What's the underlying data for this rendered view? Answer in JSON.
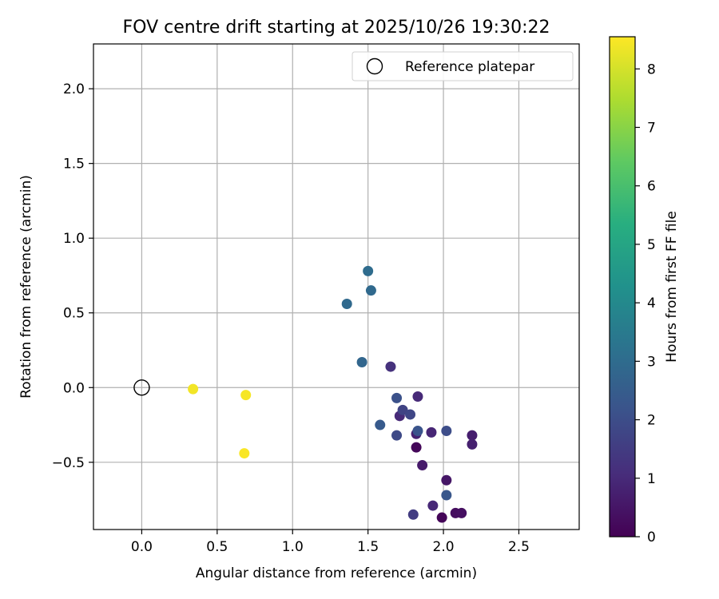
{
  "chart_data": {
    "type": "scatter",
    "title": "FOV centre drift starting at 2025/10/26 19:30:22",
    "xlabel": "Angular distance from reference (arcmin)",
    "ylabel": "Rotation from reference (arcmin)",
    "xlim": [
      -0.32,
      2.9
    ],
    "ylim": [
      -0.95,
      2.3
    ],
    "xticks": [
      0.0,
      0.5,
      1.0,
      1.5,
      2.0,
      2.5
    ],
    "xtick_labels": [
      "0.0",
      "0.5",
      "1.0",
      "1.5",
      "2.0",
      "2.5"
    ],
    "yticks": [
      -0.5,
      0.0,
      0.5,
      1.0,
      1.5,
      2.0
    ],
    "ytick_labels": [
      "−0.5",
      "0.0",
      "0.5",
      "1.0",
      "1.5",
      "2.0"
    ],
    "grid": true,
    "legend": {
      "position": "top-right",
      "entries": [
        "Reference platepar"
      ]
    },
    "reference_point": {
      "x": 0.0,
      "y": 0.0,
      "label": "Reference platepar"
    },
    "colorbar": {
      "label": "Hours from first FF file",
      "range": [
        0,
        8.55
      ],
      "ticks": [
        0,
        1,
        2,
        3,
        4,
        5,
        6,
        7,
        8
      ],
      "tick_labels": [
        "0",
        "1",
        "2",
        "3",
        "4",
        "5",
        "6",
        "7",
        "8"
      ],
      "colormap": "viridis"
    },
    "points": [
      {
        "x": 1.99,
        "y": -0.87,
        "hours": 0.1
      },
      {
        "x": 1.82,
        "y": -0.4,
        "hours": 0.15
      },
      {
        "x": 2.08,
        "y": -0.84,
        "hours": 0.3
      },
      {
        "x": 2.12,
        "y": -0.84,
        "hours": 0.35
      },
      {
        "x": 2.02,
        "y": -0.62,
        "hours": 0.5
      },
      {
        "x": 1.86,
        "y": -0.52,
        "hours": 0.6
      },
      {
        "x": 2.19,
        "y": -0.32,
        "hours": 0.7
      },
      {
        "x": 2.19,
        "y": -0.38,
        "hours": 0.75
      },
      {
        "x": 1.82,
        "y": -0.31,
        "hours": 0.8
      },
      {
        "x": 1.92,
        "y": -0.3,
        "hours": 0.9
      },
      {
        "x": 1.93,
        "y": -0.79,
        "hours": 0.95
      },
      {
        "x": 1.83,
        "y": -0.06,
        "hours": 1.0
      },
      {
        "x": 1.71,
        "y": -0.19,
        "hours": 1.0
      },
      {
        "x": 1.65,
        "y": 0.14,
        "hours": 1.2
      },
      {
        "x": 1.8,
        "y": -0.85,
        "hours": 1.5
      },
      {
        "x": 1.73,
        "y": -0.15,
        "hours": 1.7
      },
      {
        "x": 1.78,
        "y": -0.18,
        "hours": 1.8
      },
      {
        "x": 1.69,
        "y": -0.32,
        "hours": 1.9
      },
      {
        "x": 2.02,
        "y": -0.29,
        "hours": 2.0
      },
      {
        "x": 1.69,
        "y": -0.07,
        "hours": 2.1
      },
      {
        "x": 1.83,
        "y": -0.29,
        "hours": 2.2
      },
      {
        "x": 2.02,
        "y": -0.72,
        "hours": 2.3
      },
      {
        "x": 1.58,
        "y": -0.25,
        "hours": 2.4
      },
      {
        "x": 1.46,
        "y": 0.17,
        "hours": 2.8
      },
      {
        "x": 1.36,
        "y": 0.56,
        "hours": 2.9
      },
      {
        "x": 1.52,
        "y": 0.65,
        "hours": 2.9
      },
      {
        "x": 1.5,
        "y": 0.78,
        "hours": 3.0
      },
      {
        "x": 0.34,
        "y": -0.01,
        "hours": 8.4
      },
      {
        "x": 0.69,
        "y": -0.05,
        "hours": 8.45
      },
      {
        "x": 0.68,
        "y": -0.44,
        "hours": 8.5
      }
    ]
  }
}
